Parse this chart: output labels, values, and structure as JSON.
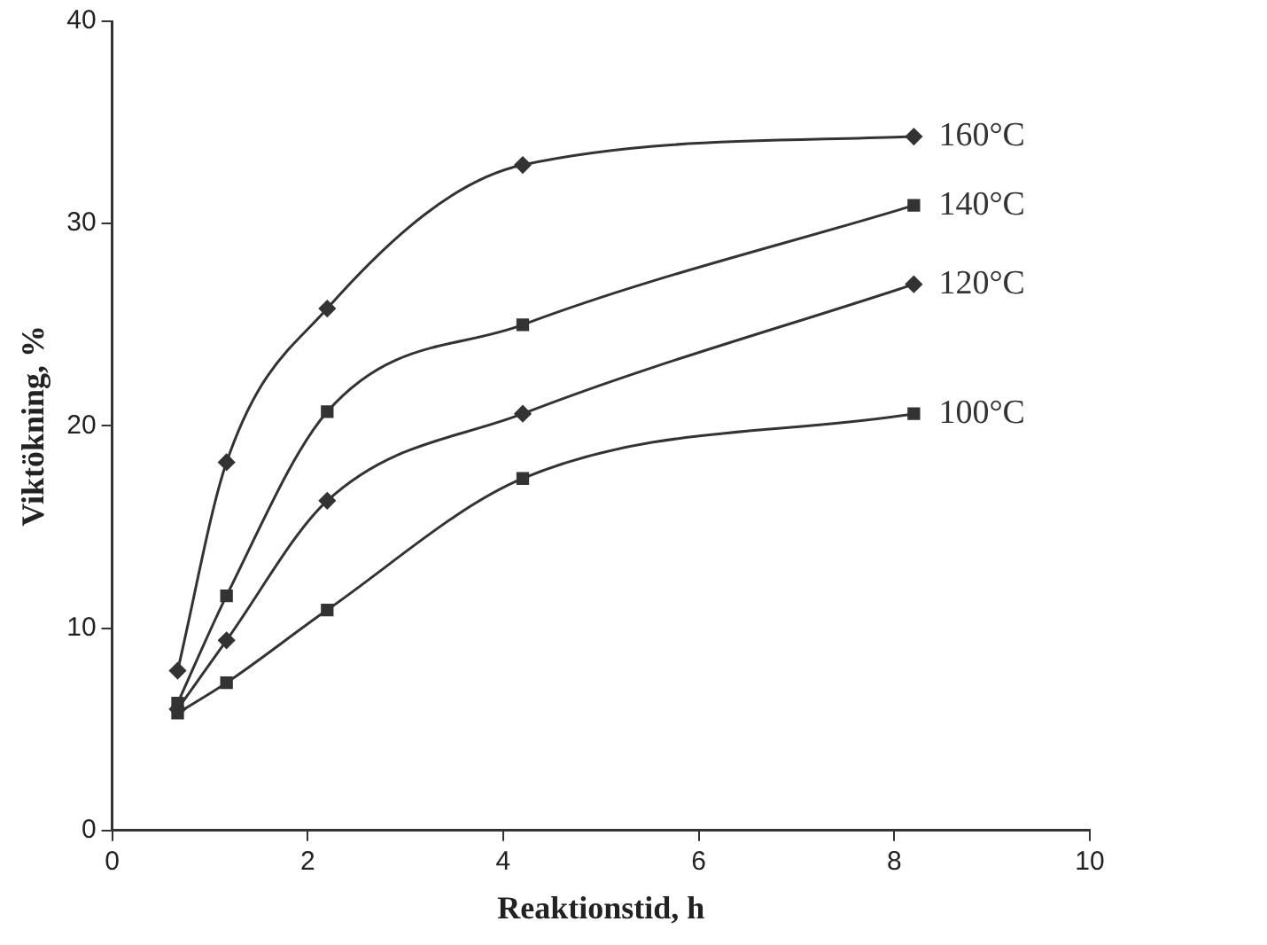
{
  "chart_data": {
    "type": "line",
    "xlabel": "Reaktionstid, h",
    "ylabel": "Viktökning, %",
    "x": [
      0.67,
      1.17,
      2.2,
      4.2,
      8.2
    ],
    "xlim": [
      0,
      10
    ],
    "xticks": [
      0,
      2,
      4,
      6,
      8,
      10
    ],
    "ylim": [
      0,
      40
    ],
    "yticks": [
      0,
      10,
      20,
      30,
      40
    ],
    "grid": false,
    "legend": false,
    "line_style": "solid",
    "series": [
      {
        "name": "160°C",
        "color": "#333333",
        "marker": "diamond",
        "values": [
          7.9,
          18.2,
          25.8,
          32.9,
          34.3
        ]
      },
      {
        "name": "140°C",
        "color": "#333333",
        "marker": "square",
        "values": [
          6.3,
          11.6,
          20.7,
          25.0,
          30.9
        ]
      },
      {
        "name": "120°C",
        "color": "#333333",
        "marker": "diamond",
        "values": [
          6.0,
          9.4,
          16.3,
          20.6,
          27.0
        ]
      },
      {
        "name": "100°C",
        "color": "#333333",
        "marker": "square",
        "values": [
          5.8,
          7.3,
          10.9,
          17.4,
          20.6
        ]
      }
    ]
  }
}
